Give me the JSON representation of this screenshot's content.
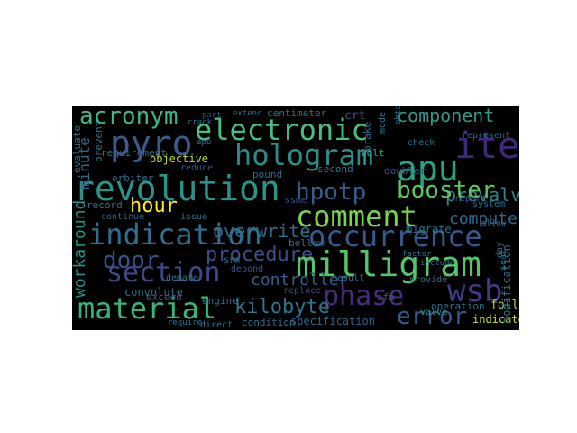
{
  "wordcloud": {
    "background": "#000000",
    "words": [
      {
        "text": "acronym",
        "color": "#3fb58c"
      },
      {
        "text": "electronic",
        "color": "#46bf7f"
      },
      {
        "text": "component",
        "color": "#2f9a8c"
      },
      {
        "text": "pyro",
        "color": "#3b5b8c"
      },
      {
        "text": "hologram",
        "color": "#2b8c8a"
      },
      {
        "text": "item",
        "color": "#40287a"
      },
      {
        "text": "apu",
        "color": "#24a586"
      },
      {
        "text": "prevalve",
        "color": "#2c878e"
      },
      {
        "text": "revolution",
        "color": "#2a948b"
      },
      {
        "text": "hpotp",
        "color": "#35608d"
      },
      {
        "text": "booster",
        "color": "#5cc863"
      },
      {
        "text": "hour",
        "color": "#fde725"
      },
      {
        "text": "comment",
        "color": "#7ad151"
      },
      {
        "text": "overwrite",
        "color": "#2f6d8e"
      },
      {
        "text": "indication",
        "color": "#2e6f8e"
      },
      {
        "text": "occurrence",
        "color": "#38588c"
      },
      {
        "text": "computer",
        "color": "#31698e"
      },
      {
        "text": "door",
        "color": "#3c4f8a"
      },
      {
        "text": "procedure",
        "color": "#3d4e8a"
      },
      {
        "text": "milligram",
        "color": "#54c568"
      },
      {
        "text": "section",
        "color": "#3e4989"
      },
      {
        "text": "controller",
        "color": "#35608d"
      },
      {
        "text": "phase",
        "color": "#472c7a"
      },
      {
        "text": "wsb",
        "color": "#443983"
      },
      {
        "text": "material",
        "color": "#35b779"
      },
      {
        "text": "kilobyte",
        "color": "#2a778e"
      },
      {
        "text": "error",
        "color": "#3a548c"
      },
      {
        "text": "specification",
        "color": "#31668e"
      },
      {
        "text": "condition",
        "color": "#2e6e8e"
      },
      {
        "text": "operation",
        "color": "#2d718e"
      },
      {
        "text": "follow",
        "color": "#b5de2b"
      },
      {
        "text": "indicate",
        "color": "#c8e020"
      },
      {
        "text": "objective",
        "color": "#bddf26"
      },
      {
        "text": "workaround",
        "color": "#21918c"
      },
      {
        "text": "minute",
        "color": "#31688e"
      },
      {
        "text": "centimeter",
        "color": "#2c738e"
      },
      {
        "text": "crt",
        "color": "#3e4c8a"
      },
      {
        "text": "requirement",
        "color": "#2c728e"
      },
      {
        "text": "orbiter",
        "color": "#2d708e"
      },
      {
        "text": "reduce",
        "color": "#3b528b"
      },
      {
        "text": "pound",
        "color": "#306a8e"
      },
      {
        "text": "second",
        "color": "#2b758e"
      },
      {
        "text": "volt",
        "color": "#2fb47c"
      },
      {
        "text": "doubler",
        "color": "#3b528b"
      },
      {
        "text": "migrate",
        "color": "#2a768e"
      },
      {
        "text": "bellow",
        "color": "#2d708e"
      },
      {
        "text": "convolute",
        "color": "#2c728e"
      },
      {
        "text": "demate",
        "color": "#287d8e"
      },
      {
        "text": "debond",
        "color": "#3b528b"
      },
      {
        "text": "srm",
        "color": "#2a778e"
      },
      {
        "text": "ifa",
        "color": "#33638d"
      },
      {
        "text": "engine",
        "color": "#2e6e8e"
      },
      {
        "text": "exceed",
        "color": "#3b528b"
      },
      {
        "text": "replace",
        "color": "#3f4788"
      },
      {
        "text": "record",
        "color": "#2c728e"
      },
      {
        "text": "continue",
        "color": "#34618d"
      },
      {
        "text": "issue",
        "color": "#2a788e"
      },
      {
        "text": "ssme",
        "color": "#3b528b"
      },
      {
        "text": "result",
        "color": "#2c728e"
      },
      {
        "text": "brake",
        "color": "#2e6e8e"
      },
      {
        "text": "check",
        "color": "#2c728e"
      },
      {
        "text": "valve",
        "color": "#1f9e89"
      },
      {
        "text": "provide",
        "color": "#2c728e"
      },
      {
        "text": "include",
        "color": "#2c728e"
      },
      {
        "text": "report",
        "color": "#3b528b"
      },
      {
        "text": "system",
        "color": "#2d718e"
      },
      {
        "text": "allow",
        "color": "#2c728e"
      },
      {
        "text": "represent",
        "color": "#31688e"
      },
      {
        "text": "modification",
        "color": "#2d718e"
      },
      {
        "text": "extend",
        "color": "#2c728e"
      },
      {
        "text": "crack",
        "color": "#2c728e"
      },
      {
        "text": "part",
        "color": "#3b528b"
      },
      {
        "text": "evaluate",
        "color": "#2c728e"
      },
      {
        "text": "prevent",
        "color": "#2d718e"
      },
      {
        "text": "direct",
        "color": "#2c728e"
      },
      {
        "text": "factor",
        "color": "#2c728e"
      },
      {
        "text": "require",
        "color": "#2d718e"
      },
      {
        "text": "day",
        "color": "#2c728e"
      },
      {
        "text": "seal",
        "color": "#2c728e"
      },
      {
        "text": "mode",
        "color": "#2c728e"
      },
      {
        "text": "obtain",
        "color": "#2c728e"
      },
      {
        "text": "apu",
        "color": "#2c728e"
      }
    ]
  }
}
